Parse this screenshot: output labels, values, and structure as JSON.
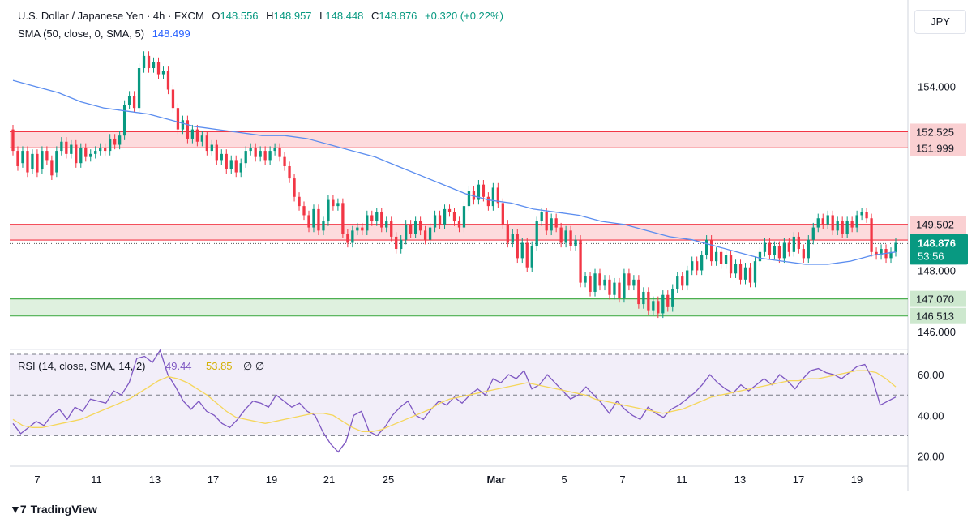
{
  "legend": {
    "title": "U.S. Dollar / Japanese Yen · 4h · FXCM",
    "o_label": "O",
    "o_value": "148.556",
    "h_label": "H",
    "h_value": "148.957",
    "l_label": "L",
    "l_value": "148.448",
    "c_label": "C",
    "c_value": "148.876",
    "change": "+0.320 (+0.22%)",
    "sma_label": "SMA (50, close, 0, SMA, 5)",
    "sma_value": "148.499",
    "rsi_label": "RSI (14, close, SMA, 14, 2)",
    "rsi_value": "49.44",
    "rsi_sma_value": "53.85",
    "rsi_extra": "∅ ∅"
  },
  "currency": "JPY",
  "brand": "TradingView",
  "colors": {
    "up": "#089981",
    "down": "#f23645",
    "sma": "#5b8def",
    "rsi": "#7e57c2",
    "rsi_ma": "#f5d65b",
    "resistance": "#f23645",
    "support": "#4caf50",
    "tag_green": "#089981"
  },
  "chart_data": [
    {
      "type": "candlestick",
      "title": "U.S. Dollar / Japanese Yen · 4h · FXCM",
      "ylim": [
        145.5,
        155.5
      ],
      "y_ticks": [
        146.0,
        148.0,
        154.0
      ],
      "x_ticks": [
        "7",
        "11",
        "13",
        "17",
        "19",
        "21",
        "25",
        "Mar",
        "5",
        "7",
        "11",
        "13",
        "17",
        "19"
      ],
      "zones": [
        {
          "kind": "resistance",
          "upper": 152.525,
          "lower": 151.999,
          "upper_label": "152.525",
          "lower_label": "151.999"
        },
        {
          "kind": "resistance",
          "upper": 149.502,
          "lower": 148.99,
          "upper_label": "149.502",
          "lower_label": "148.990"
        },
        {
          "kind": "support",
          "upper": 147.07,
          "lower": 146.513,
          "upper_label": "147.070",
          "lower_label": "146.513"
        }
      ],
      "last_price": 148.876,
      "last_price_label": "148.876",
      "countdown": "53:56",
      "candles_approx": [
        [
          152.6,
          151.9
        ],
        [
          151.9,
          151.4
        ],
        [
          151.5,
          151.9
        ],
        [
          151.9,
          151.2
        ],
        [
          151.3,
          151.8
        ],
        [
          151.8,
          151.2
        ],
        [
          151.3,
          151.9
        ],
        [
          151.9,
          151.6
        ],
        [
          151.6,
          151.1
        ],
        [
          151.2,
          151.9
        ],
        [
          151.9,
          152.2
        ],
        [
          152.2,
          151.8
        ],
        [
          151.8,
          152.1
        ],
        [
          152.1,
          151.5
        ],
        [
          151.5,
          152.0
        ],
        [
          152.0,
          151.7
        ],
        [
          151.7,
          151.8
        ],
        [
          151.8,
          151.9
        ],
        [
          151.9,
          152.0
        ],
        [
          152.0,
          151.9
        ],
        [
          151.9,
          152.3
        ],
        [
          152.3,
          152.1
        ],
        [
          152.1,
          152.4
        ],
        [
          152.4,
          153.4
        ],
        [
          153.4,
          153.7
        ],
        [
          153.7,
          153.3
        ],
        [
          153.3,
          154.6
        ],
        [
          154.6,
          155.0
        ],
        [
          155.0,
          154.6
        ],
        [
          154.6,
          154.8
        ],
        [
          154.8,
          154.4
        ],
        [
          154.4,
          154.5
        ],
        [
          154.5,
          153.9
        ],
        [
          153.9,
          153.3
        ],
        [
          153.3,
          152.6
        ],
        [
          152.6,
          152.9
        ],
        [
          152.9,
          152.3
        ],
        [
          152.3,
          152.6
        ],
        [
          152.6,
          152.2
        ],
        [
          152.2,
          152.4
        ],
        [
          152.4,
          151.9
        ],
        [
          151.9,
          152.1
        ],
        [
          152.1,
          151.6
        ],
        [
          151.6,
          151.8
        ],
        [
          151.8,
          151.3
        ],
        [
          151.3,
          151.6
        ],
        [
          151.6,
          151.2
        ],
        [
          151.2,
          151.5
        ],
        [
          151.5,
          151.9
        ],
        [
          151.9,
          152.0
        ],
        [
          152.0,
          151.7
        ],
        [
          151.7,
          151.9
        ],
        [
          151.9,
          151.6
        ],
        [
          151.6,
          151.9
        ],
        [
          151.9,
          152.0
        ],
        [
          152.0,
          151.7
        ],
        [
          151.7,
          151.4
        ],
        [
          151.4,
          151.0
        ],
        [
          151.0,
          150.4
        ],
        [
          150.4,
          150.1
        ],
        [
          150.1,
          149.8
        ],
        [
          149.8,
          149.4
        ],
        [
          149.4,
          150.0
        ],
        [
          150.0,
          149.3
        ],
        [
          149.3,
          149.6
        ],
        [
          149.6,
          150.3
        ],
        [
          150.3,
          150.1
        ],
        [
          150.1,
          150.2
        ],
        [
          150.2,
          149.2
        ],
        [
          149.2,
          148.9
        ],
        [
          148.9,
          149.3
        ],
        [
          149.3,
          149.4
        ],
        [
          149.4,
          149.3
        ],
        [
          149.3,
          149.8
        ],
        [
          149.8,
          149.6
        ],
        [
          149.6,
          149.9
        ],
        [
          149.9,
          149.4
        ],
        [
          149.4,
          149.6
        ],
        [
          149.6,
          149.1
        ],
        [
          149.1,
          148.7
        ],
        [
          148.7,
          149.0
        ],
        [
          149.0,
          149.5
        ],
        [
          149.5,
          149.2
        ],
        [
          149.2,
          149.6
        ],
        [
          149.6,
          149.3
        ],
        [
          149.3,
          149.0
        ],
        [
          149.0,
          149.4
        ],
        [
          149.4,
          149.8
        ],
        [
          149.8,
          149.5
        ],
        [
          149.5,
          150.0
        ],
        [
          150.0,
          149.9
        ],
        [
          149.9,
          149.6
        ],
        [
          149.6,
          149.4
        ],
        [
          149.4,
          150.1
        ],
        [
          150.1,
          150.6
        ],
        [
          150.6,
          150.3
        ],
        [
          150.3,
          150.8
        ],
        [
          150.8,
          150.4
        ],
        [
          150.4,
          150.1
        ],
        [
          150.1,
          150.7
        ],
        [
          150.7,
          150.2
        ],
        [
          150.2,
          149.5
        ],
        [
          149.5,
          148.9
        ],
        [
          148.9,
          149.2
        ],
        [
          149.2,
          148.4
        ],
        [
          148.4,
          148.9
        ],
        [
          148.9,
          148.1
        ],
        [
          148.1,
          148.8
        ],
        [
          148.8,
          149.6
        ],
        [
          149.6,
          149.9
        ],
        [
          149.9,
          149.3
        ],
        [
          149.3,
          149.7
        ],
        [
          149.7,
          149.4
        ],
        [
          149.4,
          148.9
        ],
        [
          148.9,
          149.3
        ],
        [
          149.3,
          148.8
        ],
        [
          148.8,
          149.0
        ],
        [
          149.0,
          147.6
        ],
        [
          147.6,
          147.8
        ],
        [
          147.8,
          147.3
        ],
        [
          147.3,
          147.9
        ],
        [
          147.9,
          147.5
        ],
        [
          147.5,
          147.7
        ],
        [
          147.7,
          147.2
        ],
        [
          147.2,
          147.6
        ],
        [
          147.6,
          147.1
        ],
        [
          147.1,
          147.9
        ],
        [
          147.9,
          147.5
        ],
        [
          147.5,
          147.7
        ],
        [
          147.7,
          146.9
        ],
        [
          146.9,
          147.3
        ],
        [
          147.3,
          146.7
        ],
        [
          146.7,
          147.0
        ],
        [
          147.0,
          146.6
        ],
        [
          146.6,
          147.2
        ],
        [
          147.2,
          146.8
        ],
        [
          146.8,
          147.4
        ],
        [
          147.4,
          147.8
        ],
        [
          147.8,
          147.5
        ],
        [
          147.5,
          148.0
        ],
        [
          148.0,
          148.3
        ],
        [
          148.3,
          148.0
        ],
        [
          148.0,
          148.5
        ],
        [
          148.5,
          149.0
        ],
        [
          149.0,
          148.3
        ],
        [
          148.3,
          148.6
        ],
        [
          148.6,
          148.2
        ],
        [
          148.2,
          148.5
        ],
        [
          148.5,
          147.9
        ],
        [
          147.9,
          148.2
        ],
        [
          148.2,
          147.7
        ],
        [
          147.7,
          148.1
        ],
        [
          148.1,
          147.6
        ],
        [
          147.6,
          148.3
        ],
        [
          148.3,
          148.6
        ],
        [
          148.6,
          148.9
        ],
        [
          148.9,
          148.5
        ],
        [
          148.5,
          148.8
        ],
        [
          148.8,
          148.4
        ],
        [
          148.4,
          148.9
        ],
        [
          148.9,
          148.6
        ],
        [
          148.6,
          149.1
        ],
        [
          149.1,
          148.7
        ],
        [
          148.7,
          148.4
        ],
        [
          148.4,
          149.0
        ],
        [
          149.0,
          149.4
        ],
        [
          149.4,
          149.7
        ],
        [
          149.7,
          149.5
        ],
        [
          149.5,
          149.8
        ],
        [
          149.8,
          149.3
        ],
        [
          149.3,
          149.6
        ],
        [
          149.6,
          149.2
        ],
        [
          149.2,
          149.6
        ],
        [
          149.6,
          149.4
        ],
        [
          149.4,
          149.8
        ],
        [
          149.8,
          149.9
        ],
        [
          149.9,
          149.7
        ],
        [
          149.7,
          148.6
        ],
        [
          148.6,
          148.5
        ],
        [
          148.5,
          148.7
        ],
        [
          148.7,
          148.4
        ],
        [
          148.4,
          148.6
        ],
        [
          148.6,
          148.9
        ]
      ],
      "sma_approx": [
        154.2,
        154.0,
        153.8,
        153.5,
        153.3,
        153.2,
        153.1,
        152.9,
        152.7,
        152.6,
        152.5,
        152.4,
        152.4,
        152.3,
        152.1,
        151.9,
        151.7,
        151.4,
        151.1,
        150.8,
        150.5,
        150.3,
        150.2,
        150.0,
        149.9,
        149.8,
        149.6,
        149.5,
        149.3,
        149.1,
        149.0,
        148.8,
        148.6,
        148.4,
        148.3,
        148.2,
        148.2,
        148.3,
        148.5,
        148.6
      ]
    },
    {
      "type": "line",
      "title": "RSI (14, close, SMA, 14, 2)",
      "ylim": [
        15,
        72
      ],
      "y_ticks": [
        20.0,
        40.0,
        60.0
      ],
      "bands": [
        30,
        50,
        70
      ],
      "series": [
        {
          "name": "RSI",
          "values": [
            36,
            31,
            34,
            37,
            35,
            40,
            43,
            38,
            44,
            42,
            48,
            47,
            46,
            52,
            50,
            56,
            68,
            69,
            66,
            72,
            60,
            54,
            47,
            43,
            47,
            42,
            40,
            36,
            34,
            38,
            43,
            47,
            46,
            44,
            50,
            47,
            44,
            46,
            42,
            40,
            32,
            26,
            22,
            27,
            40,
            42,
            32,
            30,
            34,
            40,
            44,
            47,
            40,
            38,
            43,
            47,
            45,
            49,
            46,
            50,
            53,
            50,
            58,
            56,
            60,
            58,
            62,
            53,
            55,
            60,
            56,
            52,
            48,
            50,
            54,
            50,
            46,
            41,
            47,
            43,
            40,
            38,
            44,
            41,
            39,
            43,
            45,
            48,
            51,
            55,
            60,
            56,
            53,
            51,
            55,
            52,
            55,
            58,
            55,
            60,
            57,
            53,
            58,
            62,
            63,
            61,
            60,
            58,
            61,
            64,
            65,
            58,
            45,
            47,
            49
          ]
        },
        {
          "name": "RSI-based MA",
          "values": [
            38,
            35,
            34,
            34,
            35,
            36,
            37,
            38,
            40,
            42,
            44,
            46,
            48,
            51,
            54,
            57,
            59,
            58,
            56,
            53,
            50,
            46,
            42,
            39,
            38,
            37,
            36,
            37,
            38,
            39,
            40,
            41,
            41,
            40,
            37,
            34,
            32,
            32,
            33,
            35,
            37,
            39,
            41,
            43,
            46,
            48,
            49,
            50,
            51,
            52,
            53,
            54,
            55,
            56,
            55,
            54,
            53,
            52,
            51,
            50,
            48,
            47,
            46,
            45,
            44,
            43,
            42,
            41,
            42,
            43,
            45,
            47,
            49,
            50,
            51,
            52,
            53,
            54,
            55,
            56,
            57,
            57,
            58,
            58,
            59,
            60,
            61,
            62,
            62,
            61,
            58,
            54
          ]
        }
      ]
    }
  ]
}
